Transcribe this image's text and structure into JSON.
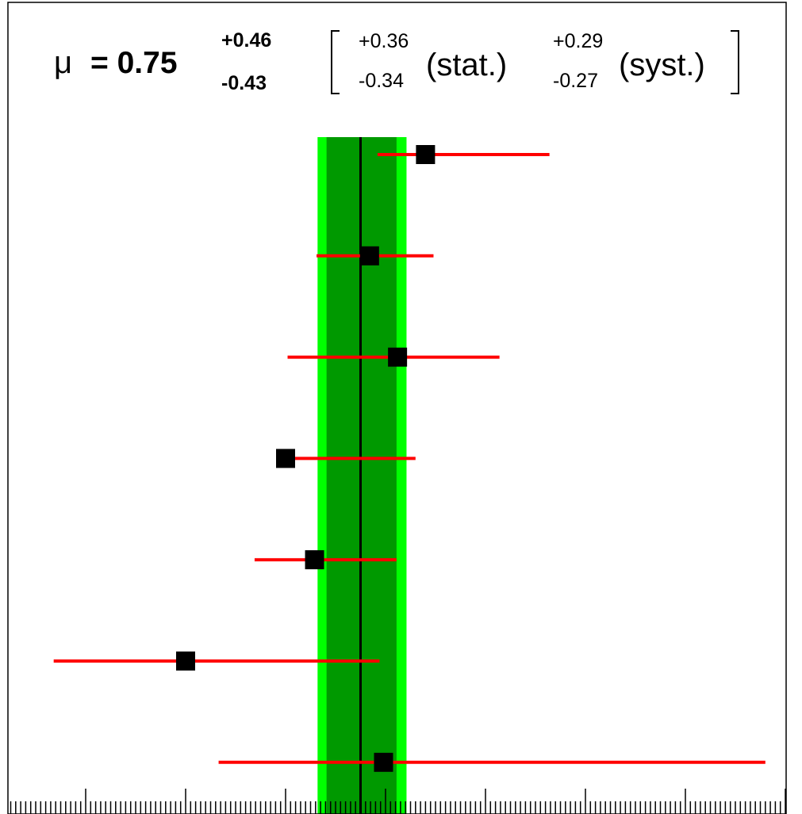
{
  "header": {
    "mu_symbol": "μ",
    "mu_eq": "= 0.75",
    "mu_up": "+0.46",
    "mu_down": "-0.43",
    "stat_up": "+0.36",
    "stat_down": "-0.34",
    "stat_label": "(stat.)",
    "syst_up": "+0.29",
    "syst_down": "-0.27",
    "syst_label": "(syst.)"
  },
  "chart_data": {
    "type": "scatter",
    "title": "",
    "xlabel": "",
    "ylabel": "",
    "combined": {
      "value": 0.75,
      "stat_up": 0.36,
      "stat_down": 0.34,
      "total_up": 0.46,
      "total_down": 0.43
    },
    "points": [
      {
        "value": 1.4,
        "err_low": 0.48,
        "err_high": 1.24
      },
      {
        "value": 0.84,
        "err_low": 0.53,
        "err_high": 0.64
      },
      {
        "value": 1.12,
        "err_low": 1.1,
        "err_high": 1.02
      },
      {
        "value": 0.0,
        "err_low": 0.0,
        "err_high": 1.3
      },
      {
        "value": 0.29,
        "err_low": 0.6,
        "err_high": 0.82
      },
      {
        "value": -1.0,
        "err_low": 1.32,
        "err_high": 1.94
      },
      {
        "value": 0.98,
        "err_low": 1.65,
        "err_high": 3.82
      }
    ],
    "colors": {
      "inner_band": "#009900",
      "outer_band": "#00ff00",
      "error_bar": "#ff0000",
      "marker": "#000000",
      "central_line": "#000000"
    }
  }
}
